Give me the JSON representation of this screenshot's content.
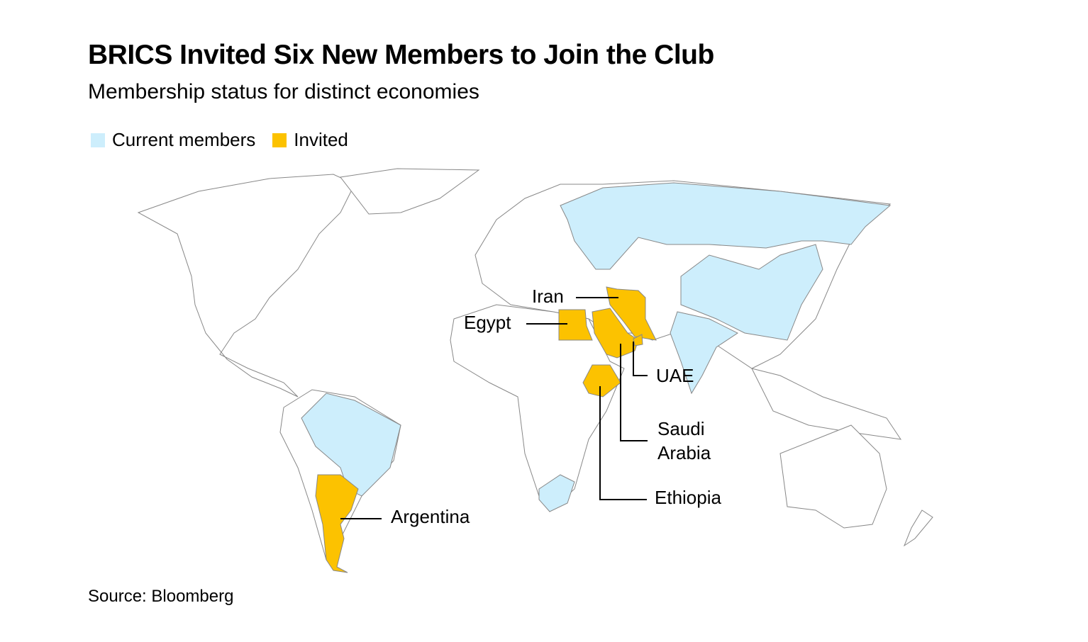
{
  "title": "BRICS Invited Six New Members to Join the Club",
  "subtitle": "Membership status for distinct economies",
  "legend": [
    {
      "label": "Current members",
      "color": "#cdeefc"
    },
    {
      "label": "Invited",
      "color": "#fcc200"
    }
  ],
  "labels": [
    "Iran",
    "Egypt",
    "UAE",
    "Saudi Arabia",
    "Ethiopia",
    "Argentina"
  ],
  "source": "Source: Bloomberg"
}
